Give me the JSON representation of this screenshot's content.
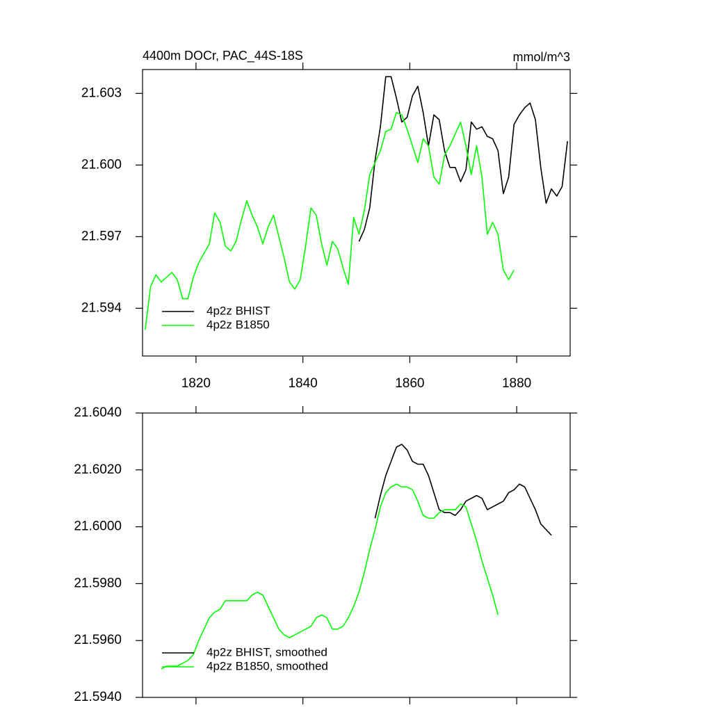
{
  "chart_data": [
    {
      "type": "line",
      "title": "4400m DOCr, PAC_44S-18S",
      "unit_label": "mmol/m^3",
      "xlim": [
        1810,
        1890
      ],
      "xticks": [
        1820,
        1840,
        1860,
        1880
      ],
      "ylim": [
        21.592,
        21.604
      ],
      "yticks": [
        21.594,
        21.597,
        {
          "value": 21.6,
          "label": "21.600"
        },
        21.603
      ],
      "legend": "lower left",
      "series": [
        {
          "name": "4p2z BHIST",
          "color": "#000000",
          "x": [
            1850.5,
            1851.5,
            1852.5,
            1853.5,
            1854.5,
            1855.5,
            1856.5,
            1857.5,
            1858.5,
            1859.5,
            1860.5,
            1861.5,
            1862.5,
            1863.5,
            1864.5,
            1865.5,
            1866.5,
            1867.5,
            1868.5,
            1869.5,
            1870.5,
            1871.5,
            1872.5,
            1873.5,
            1874.5,
            1875.5,
            1876.5,
            1877.5,
            1878.5,
            1879.5,
            1880.5,
            1881.5,
            1882.5,
            1883.5,
            1884.5,
            1885.5,
            1886.5,
            1887.5,
            1888.5,
            1889.5
          ],
          "values": [
            21.5968,
            21.5973,
            21.5982,
            21.6002,
            21.6016,
            21.6037,
            21.6037,
            21.6028,
            21.6018,
            21.602,
            21.6029,
            21.6033,
            21.6022,
            21.6008,
            21.6021,
            21.6019,
            21.6006,
            21.5999,
            21.5999,
            21.5993,
            21.5998,
            21.6018,
            21.6015,
            21.6016,
            21.6012,
            21.6011,
            21.6006,
            21.5988,
            21.5995,
            21.6017,
            21.6021,
            21.6024,
            21.6026,
            21.6019,
            21.5999,
            21.5984,
            21.599,
            21.5987,
            21.5991,
            21.601
          ]
        },
        {
          "name": "4p2z B1850",
          "color": "#00ff00",
          "x": [
            1810.5,
            1811.5,
            1812.5,
            1813.5,
            1814.5,
            1815.5,
            1816.5,
            1817.5,
            1818.5,
            1819.5,
            1820.5,
            1821.5,
            1822.5,
            1823.5,
            1824.5,
            1825.5,
            1826.5,
            1827.5,
            1828.5,
            1829.5,
            1830.5,
            1831.5,
            1832.5,
            1833.5,
            1834.5,
            1835.5,
            1836.5,
            1837.5,
            1838.5,
            1839.5,
            1840.5,
            1841.5,
            1842.5,
            1843.5,
            1844.5,
            1845.5,
            1846.5,
            1847.5,
            1848.5,
            1849.5,
            1850.5,
            1851.5,
            1852.5,
            1853.5,
            1854.5,
            1855.5,
            1856.5,
            1857.5,
            1858.5,
            1859.5,
            1860.5,
            1861.5,
            1862.5,
            1863.5,
            1864.5,
            1865.5,
            1866.5,
            1867.5,
            1868.5,
            1869.5,
            1870.5,
            1871.5,
            1872.5,
            1873.5,
            1874.5,
            1875.5,
            1876.5,
            1877.5,
            1878.5,
            1879.5
          ],
          "values": [
            21.5931,
            21.5949,
            21.5954,
            21.5951,
            21.5953,
            21.5955,
            21.5952,
            21.5944,
            21.5944,
            21.5953,
            21.5959,
            21.5963,
            21.5967,
            21.598,
            21.5976,
            21.5966,
            21.5964,
            21.5968,
            21.5977,
            21.5985,
            21.5979,
            21.5974,
            21.5967,
            21.5974,
            21.5979,
            21.597,
            21.5961,
            21.5951,
            21.5948,
            21.5952,
            21.5966,
            21.5982,
            21.5979,
            21.5967,
            21.5958,
            21.5968,
            21.5965,
            21.5957,
            21.595,
            21.5978,
            21.5971,
            21.5981,
            21.5996,
            21.6001,
            21.6006,
            21.6014,
            21.6015,
            21.6022,
            21.6021,
            21.6015,
            21.6008,
            21.6001,
            21.6011,
            21.6008,
            21.5995,
            21.5992,
            21.6004,
            21.6008,
            21.6013,
            21.6018,
            21.6008,
            21.5996,
            21.6008,
            21.5995,
            21.5971,
            21.5976,
            21.5971,
            21.5956,
            21.5952,
            21.5956
          ]
        }
      ]
    },
    {
      "type": "line",
      "xlim": [
        1810,
        1890
      ],
      "xticks": [
        1820,
        1840,
        1860,
        1880
      ],
      "ylim": [
        21.594,
        21.604
      ],
      "yticks": [
        {
          "value": 21.594,
          "label": "21.5940"
        },
        {
          "value": 21.596,
          "label": "21.5960"
        },
        {
          "value": 21.598,
          "label": "21.5980"
        },
        {
          "value": 21.6,
          "label": "21.6000"
        },
        {
          "value": 21.602,
          "label": "21.6020"
        },
        {
          "value": 21.604,
          "label": "21.6040"
        }
      ],
      "legend": "lower left",
      "series": [
        {
          "name": "4p2z BHIST, smoothed",
          "color": "#000000",
          "x": [
            1853.5,
            1854.5,
            1855.5,
            1856.5,
            1857.5,
            1858.5,
            1859.5,
            1860.5,
            1861.5,
            1862.5,
            1863.5,
            1864.5,
            1865.5,
            1866.5,
            1867.5,
            1868.5,
            1869.5,
            1870.5,
            1871.5,
            1872.5,
            1873.5,
            1874.5,
            1875.5,
            1876.5,
            1877.5,
            1878.5,
            1879.5,
            1880.5,
            1881.5,
            1882.5,
            1883.5,
            1884.5,
            1885.5,
            1886.5
          ],
          "values": [
            21.6003,
            21.6011,
            21.6018,
            21.6023,
            21.6028,
            21.6029,
            21.6027,
            21.6023,
            21.6022,
            21.6022,
            21.6018,
            21.6012,
            21.6006,
            21.6005,
            21.6005,
            21.6004,
            21.6006,
            21.6009,
            21.601,
            21.6011,
            21.601,
            21.6006,
            21.6007,
            21.6008,
            21.6009,
            21.6012,
            21.6013,
            21.6015,
            21.6014,
            21.601,
            21.6006,
            21.6001,
            21.5999,
            21.5997
          ]
        },
        {
          "name": "4p2z B1850, smoothed",
          "color": "#00ff00",
          "x": [
            1813.5,
            1814.5,
            1815.5,
            1816.5,
            1817.5,
            1818.5,
            1819.5,
            1820.5,
            1821.5,
            1822.5,
            1823.5,
            1824.5,
            1825.5,
            1826.5,
            1827.5,
            1828.5,
            1829.5,
            1830.5,
            1831.5,
            1832.5,
            1833.5,
            1834.5,
            1835.5,
            1836.5,
            1837.5,
            1838.5,
            1839.5,
            1840.5,
            1841.5,
            1842.5,
            1843.5,
            1844.5,
            1845.5,
            1846.5,
            1847.5,
            1848.5,
            1849.5,
            1850.5,
            1851.5,
            1852.5,
            1853.5,
            1854.5,
            1855.5,
            1856.5,
            1857.5,
            1858.5,
            1859.5,
            1860.5,
            1861.5,
            1862.5,
            1863.5,
            1864.5,
            1865.5,
            1866.5,
            1867.5,
            1868.5,
            1869.5,
            1870.5,
            1871.5,
            1872.5,
            1873.5,
            1874.5,
            1875.5,
            1876.5
          ],
          "values": [
            21.595,
            21.5951,
            21.5951,
            21.5951,
            21.5952,
            21.5953,
            21.5955,
            21.596,
            21.5964,
            21.5968,
            21.597,
            21.5971,
            21.5974,
            21.5974,
            21.5974,
            21.5974,
            21.5974,
            21.5976,
            21.5977,
            21.5976,
            21.5972,
            21.5968,
            21.5964,
            21.5962,
            21.5961,
            21.5962,
            21.5963,
            21.5964,
            21.5965,
            21.5968,
            21.5969,
            21.5968,
            21.5964,
            21.5964,
            21.5965,
            21.5968,
            21.5972,
            21.5977,
            21.5984,
            21.5992,
            21.5999,
            21.6007,
            21.6012,
            21.6014,
            21.6015,
            21.6014,
            21.6014,
            21.6013,
            21.6009,
            21.6004,
            21.6003,
            21.6003,
            21.6005,
            21.6006,
            21.6006,
            21.6006,
            21.6008,
            21.6007,
            21.6001,
            21.5995,
            21.5988,
            21.5982,
            21.5976,
            21.5969
          ]
        }
      ]
    }
  ]
}
